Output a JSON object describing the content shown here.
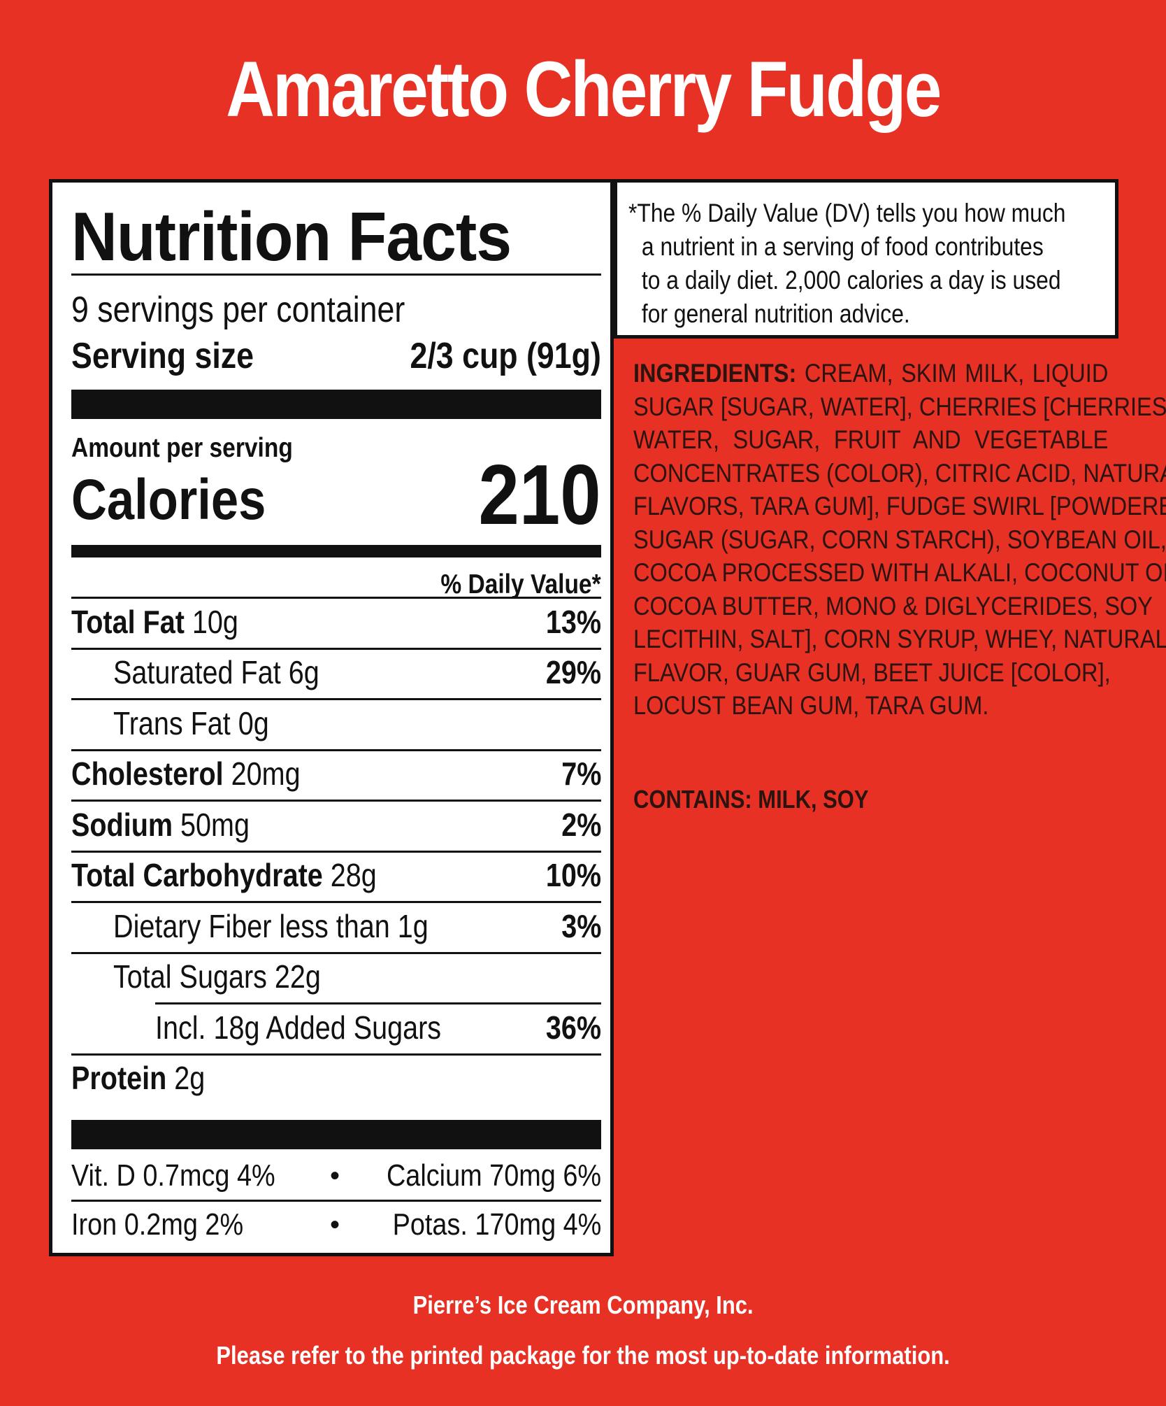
{
  "product": {
    "title": "Amaretto Cherry Fudge"
  },
  "colors": {
    "background": "#e83125",
    "panel": "#ffffff",
    "ink": "#111111",
    "ingredients_text": "#2b1410"
  },
  "nutrition": {
    "heading": "Nutrition Facts",
    "servings": "9 servings per container",
    "serving_size_label": "Serving size",
    "serving_size_value": "2/3 cup (91g)",
    "amount_per_serving": "Amount per serving",
    "calories_label": "Calories",
    "calories_value": "210",
    "dv_header": "% Daily Value*",
    "rows": [
      {
        "label": "Total Fat",
        "amount": " 10g",
        "dv": "13%"
      },
      {
        "label": "Saturated Fat 6g",
        "amount": "",
        "dv": "29%"
      },
      {
        "label": "Trans Fat 0g",
        "amount": "",
        "dv": ""
      },
      {
        "label": "Cholesterol",
        "amount": " 20mg",
        "dv": "7%"
      },
      {
        "label": "Sodium",
        "amount": " 50mg",
        "dv": "2%"
      },
      {
        "label": "Total Carbohydrate",
        "amount": " 28g",
        "dv": "10%"
      },
      {
        "label": "Dietary Fiber less than 1g",
        "amount": "",
        "dv": "3%"
      },
      {
        "label": "Total Sugars 22g",
        "amount": "",
        "dv": ""
      },
      {
        "label": "Incl. 18g Added Sugars",
        "amount": "",
        "dv": "36%"
      },
      {
        "label": "Protein",
        "amount": " 2g",
        "dv": ""
      }
    ],
    "vitamins": [
      {
        "left": "Vit. D 0.7mcg 4%",
        "bullet": "•",
        "right": "Calcium 70mg 6%"
      },
      {
        "left": "Iron 0.2mg 2%",
        "bullet": "•",
        "right": "Potas. 170mg 4%"
      }
    ]
  },
  "dv_note": {
    "lines": [
      "*The % Daily Value (DV) tells you how much",
      "a nutrient in a serving of food contributes",
      "to a daily diet. 2,000 calories a day is used",
      "for general nutrition advice."
    ]
  },
  "ingredients": {
    "label": "INGREDIENTS:",
    "lines": [
      " CREAM, SKIM MILK, LIQUID",
      "SUGAR [SUGAR, WATER], CHERRIES [CHERRIES,",
      "WATER, SUGAR, FRUIT AND VEGETABLE",
      "CONCENTRATES (COLOR), CITRIC ACID, NATURAL",
      "FLAVORS, TARA GUM], FUDGE SWIRL [POWDERED",
      "SUGAR (SUGAR, CORN STARCH), SOYBEAN OIL,",
      "COCOA PROCESSED WITH ALKALI, COCONUT OIL,",
      "COCOA BUTTER, MONO & DIGLYCERIDES, SOY",
      "LECITHIN, SALT], CORN SYRUP, WHEY, NATURAL",
      "FLAVOR, GUAR GUM, BEET JUICE [COLOR],",
      "LOCUST BEAN GUM, TARA GUM."
    ],
    "contains": "CONTAINS: MILK, SOY"
  },
  "footer": {
    "company": "Pierre’s Ice Cream Company, Inc.",
    "notice": "Please refer to the printed package for the most up-to-date information."
  }
}
